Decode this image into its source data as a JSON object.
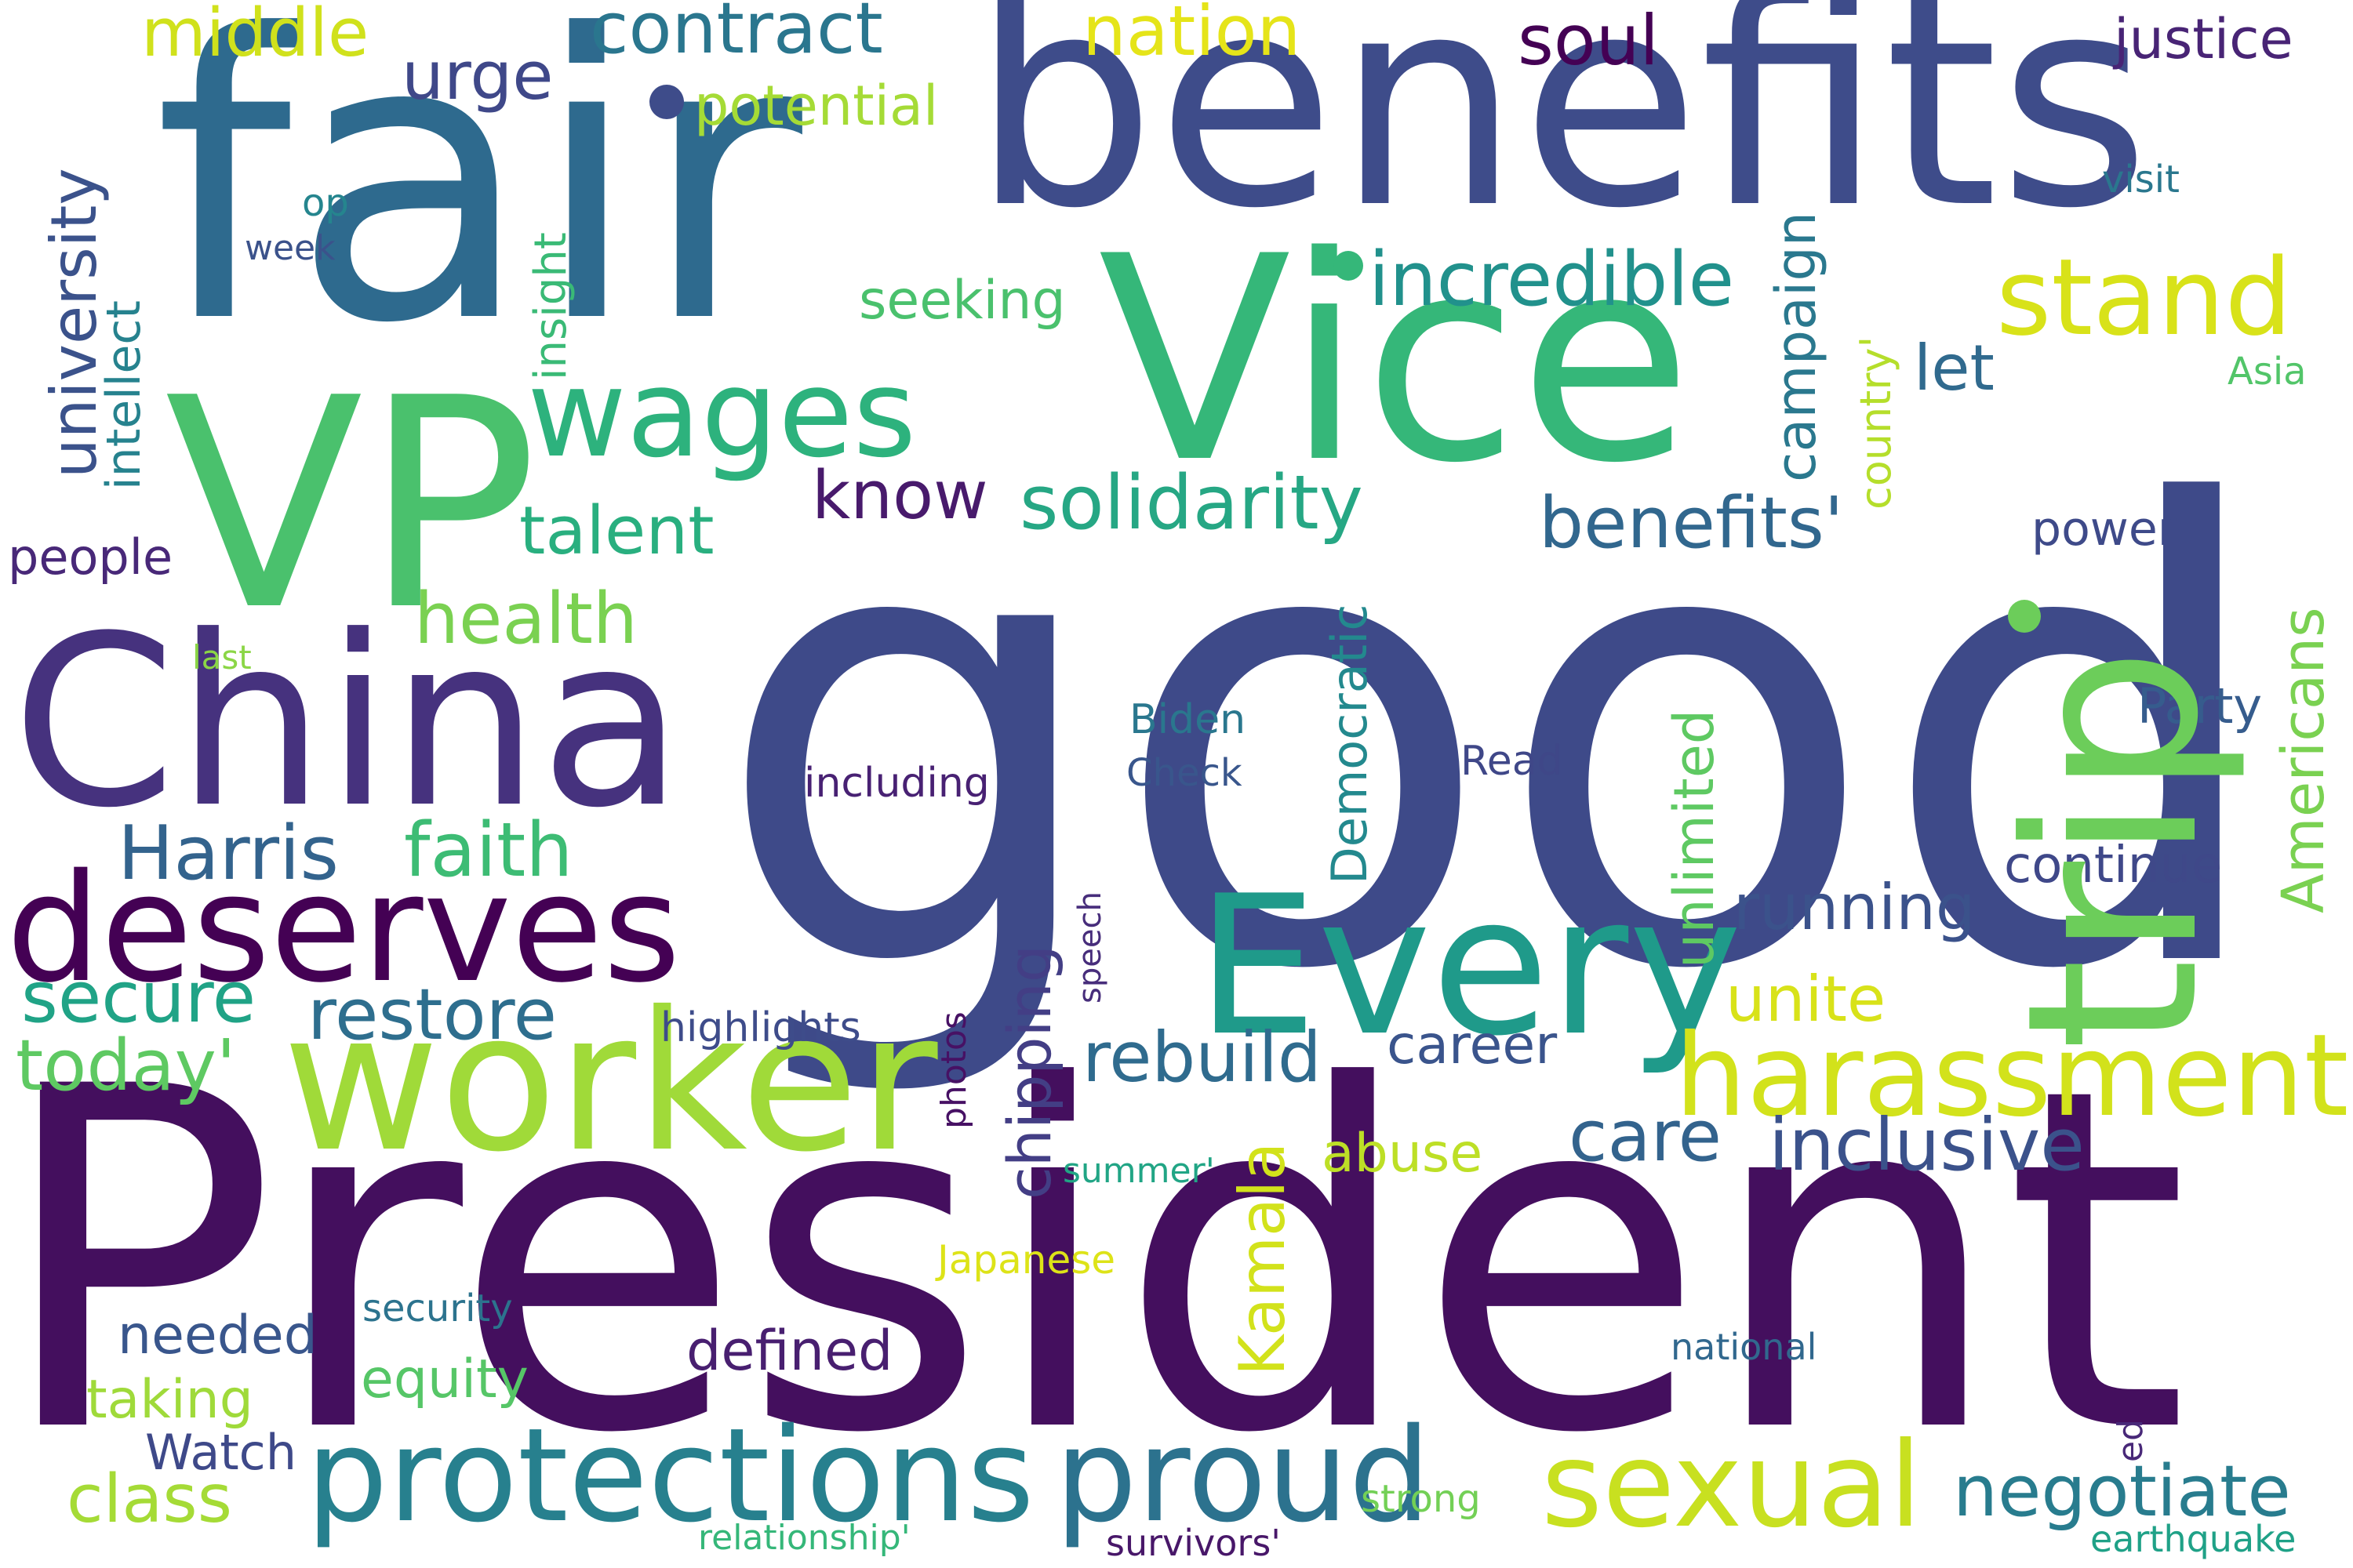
{
  "words": [
    {
      "text": "President",
      "color": "#440f5e"
    },
    {
      "text": "good",
      "color": "#3e4a89"
    },
    {
      "text": "fair",
      "color": "#2e6a8e"
    },
    {
      "text": "benefits",
      "color": "#3e4c8a"
    },
    {
      "text": "Vice",
      "color": "#35b779"
    },
    {
      "text": "VP",
      "color": "#4ac16d"
    },
    {
      "text": "trip",
      "color": "#6ccd5a"
    },
    {
      "text": "China",
      "color": "#46327e"
    },
    {
      "text": "worker",
      "color": "#a0da39"
    },
    {
      "text": "deserves",
      "color": "#440154"
    },
    {
      "text": "Every",
      "color": "#1f9a8a"
    },
    {
      "text": "protections",
      "color": "#27808e"
    },
    {
      "text": "proud",
      "color": "#2c728e"
    },
    {
      "text": "sexual",
      "color": "#c8e020"
    },
    {
      "text": "harassment",
      "color": "#d2e21b"
    },
    {
      "text": "wages",
      "color": "#2db27d"
    },
    {
      "text": "stand",
      "color": "#d8e219"
    },
    {
      "text": "incredible",
      "color": "#21918c"
    },
    {
      "text": "solidarity",
      "color": "#26a784"
    },
    {
      "text": "benefits'",
      "color": "#31678e"
    },
    {
      "text": "Harris",
      "color": "#33638d"
    },
    {
      "text": "faith",
      "color": "#3dbc74"
    },
    {
      "text": "secure",
      "color": "#20a386"
    },
    {
      "text": "restore",
      "color": "#2e6e8e"
    },
    {
      "text": "today'",
      "color": "#5ec962"
    },
    {
      "text": "health",
      "color": "#7ad151"
    },
    {
      "text": "talent",
      "color": "#29af7f"
    },
    {
      "text": "know",
      "color": "#481a6c"
    },
    {
      "text": "contract",
      "color": "#2a768e"
    },
    {
      "text": "urge",
      "color": "#3f4889"
    },
    {
      "text": "middle",
      "color": "#d0e11c"
    },
    {
      "text": "nation",
      "color": "#e5e419"
    },
    {
      "text": "soul",
      "color": "#440154"
    },
    {
      "text": "justice",
      "color": "#482475"
    },
    {
      "text": "potential",
      "color": "#a5db36"
    },
    {
      "text": "rebuild",
      "color": "#2f6b8e"
    },
    {
      "text": "inclusive",
      "color": "#3b528b"
    },
    {
      "text": "care",
      "color": "#33638d"
    },
    {
      "text": "unite",
      "color": "#d8e219"
    },
    {
      "text": "running",
      "color": "#3b528b"
    },
    {
      "text": "continue",
      "color": "#3f4889"
    },
    {
      "text": "negotiate",
      "color": "#287c8e"
    },
    {
      "text": "class",
      "color": "#a5db36"
    },
    {
      "text": "let",
      "color": "#306a8e"
    },
    {
      "text": "seeking",
      "color": "#4ac16d"
    },
    {
      "text": "people",
      "color": "#482878"
    },
    {
      "text": "power",
      "color": "#3e4a89"
    },
    {
      "text": "Party",
      "color": "#365c8d"
    },
    {
      "text": "abuse",
      "color": "#bddf26"
    },
    {
      "text": "career",
      "color": "#3a548c"
    },
    {
      "text": "needed",
      "color": "#39568c"
    },
    {
      "text": "defined",
      "color": "#481f70"
    },
    {
      "text": "equity",
      "color": "#56c667"
    },
    {
      "text": "taking",
      "color": "#9fda3a"
    },
    {
      "text": "Watch",
      "color": "#3e4989"
    },
    {
      "text": "highlights",
      "color": "#3e4c8a"
    },
    {
      "text": "including",
      "color": "#482173"
    },
    {
      "text": "Biden",
      "color": "#2a778e"
    },
    {
      "text": "Check",
      "color": "#39568c"
    },
    {
      "text": "Read",
      "color": "#3f4788"
    },
    {
      "text": "security",
      "color": "#2c738e"
    },
    {
      "text": "Japanese",
      "color": "#dde318"
    },
    {
      "text": "summer'",
      "color": "#21a585"
    },
    {
      "text": "national",
      "color": "#31688e"
    },
    {
      "text": "strong",
      "color": "#73d056"
    },
    {
      "text": "survivors'",
      "color": "#481769"
    },
    {
      "text": "relationship'",
      "color": "#35b779"
    },
    {
      "text": "earthquake",
      "color": "#1fa187"
    },
    {
      "text": "visit",
      "color": "#2a778e"
    },
    {
      "text": "Asia",
      "color": "#52c569"
    },
    {
      "text": "op",
      "color": "#25858e"
    },
    {
      "text": "week",
      "color": "#3b528b"
    },
    {
      "text": "last",
      "color": "#8bd646"
    },
    {
      "text": "university",
      "color": "#3b528b"
    },
    {
      "text": "intellect",
      "color": "#26828e"
    },
    {
      "text": "insight",
      "color": "#3aba76"
    },
    {
      "text": "campaign",
      "color": "#2a788e"
    },
    {
      "text": "country'",
      "color": "#b5de2b"
    },
    {
      "text": "Democratic",
      "color": "#23898e"
    },
    {
      "text": "unlimited",
      "color": "#5ec962"
    },
    {
      "text": "Americans",
      "color": "#7ad151"
    },
    {
      "text": "chipping",
      "color": "#433e85"
    },
    {
      "text": "Kamala",
      "color": "#d2e21b"
    },
    {
      "text": "photos",
      "color": "#471164"
    },
    {
      "text": "speech",
      "color": "#472d7b"
    },
    {
      "text": "ed",
      "color": "#482878"
    }
  ]
}
